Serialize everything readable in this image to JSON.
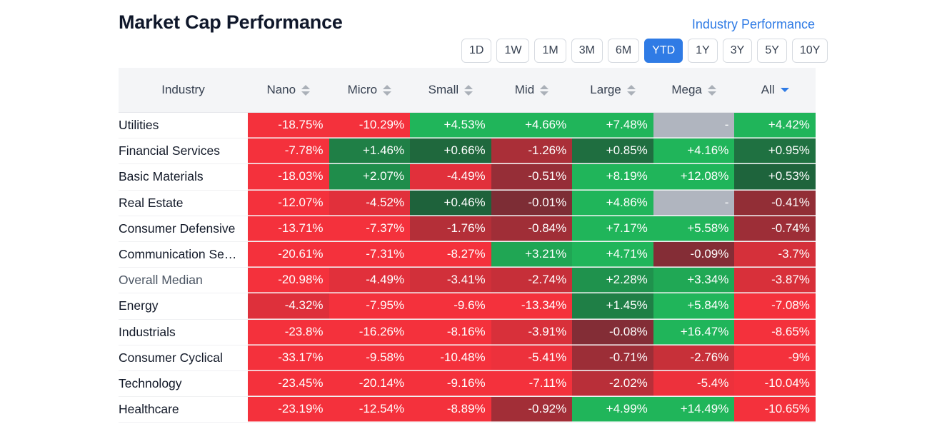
{
  "header": {
    "title": "Market Cap Performance",
    "link_label": "Industry Performance"
  },
  "periods": {
    "options": [
      "1D",
      "1W",
      "1M",
      "3M",
      "6M",
      "YTD",
      "1Y",
      "3Y",
      "5Y",
      "10Y"
    ],
    "selected": "YTD"
  },
  "colors": {
    "accent": "#2f7be5",
    "strong_negative": "#f4313c",
    "dark_negative": "#7a2d35",
    "strong_positive": "#20b55a",
    "dark_positive": "#1e4a32",
    "missing": "#b0b5bf"
  },
  "chart_data": {
    "type": "heatmap",
    "title": "Market Cap Performance",
    "columns": [
      "Industry",
      "Nano",
      "Micro",
      "Small",
      "Mid",
      "Large",
      "Mega",
      "All"
    ],
    "sorted_column": "All",
    "sort_direction": "desc",
    "rows": [
      {
        "label": "Utilities",
        "values": [
          "-18.75%",
          "-10.29%",
          "+4.53%",
          "+4.66%",
          "+7.48%",
          "-",
          "+4.42%"
        ]
      },
      {
        "label": "Financial Services",
        "values": [
          "-7.78%",
          "+1.46%",
          "+0.66%",
          "-1.26%",
          "+0.85%",
          "+4.16%",
          "+0.95%"
        ]
      },
      {
        "label": "Basic Materials",
        "values": [
          "-18.03%",
          "+2.07%",
          "-4.49%",
          "-0.51%",
          "+8.19%",
          "+12.08%",
          "+0.53%"
        ]
      },
      {
        "label": "Real Estate",
        "values": [
          "-12.07%",
          "-4.52%",
          "+0.46%",
          "-0.01%",
          "+4.86%",
          "-",
          "-0.41%"
        ]
      },
      {
        "label": "Consumer Defensive",
        "values": [
          "-13.71%",
          "-7.37%",
          "-1.76%",
          "-0.84%",
          "+7.17%",
          "+5.58%",
          "-0.74%"
        ]
      },
      {
        "label": "Communication Se…",
        "values": [
          "-20.61%",
          "-7.31%",
          "-8.27%",
          "+3.21%",
          "+4.71%",
          "-0.09%",
          "-3.7%"
        ]
      },
      {
        "label": "Overall Median",
        "values": [
          "-20.98%",
          "-4.49%",
          "-3.41%",
          "-2.74%",
          "+2.28%",
          "+3.34%",
          "-3.87%"
        ]
      },
      {
        "label": "Energy",
        "values": [
          "-4.32%",
          "-7.95%",
          "-9.6%",
          "-13.34%",
          "+1.45%",
          "+5.84%",
          "-7.08%"
        ]
      },
      {
        "label": "Industrials",
        "values": [
          "-23.8%",
          "-16.26%",
          "-8.16%",
          "-3.91%",
          "-0.08%",
          "+16.47%",
          "-8.65%"
        ]
      },
      {
        "label": "Consumer Cyclical",
        "values": [
          "-33.17%",
          "-9.58%",
          "-10.48%",
          "-5.41%",
          "-0.71%",
          "-2.76%",
          "-9%"
        ]
      },
      {
        "label": "Technology",
        "values": [
          "-23.45%",
          "-20.14%",
          "-9.16%",
          "-7.11%",
          "-2.02%",
          "-5.4%",
          "-10.04%"
        ]
      },
      {
        "label": "Healthcare",
        "values": [
          "-23.19%",
          "-12.54%",
          "-8.89%",
          "-0.92%",
          "+4.99%",
          "+14.49%",
          "-10.65%"
        ]
      }
    ]
  }
}
